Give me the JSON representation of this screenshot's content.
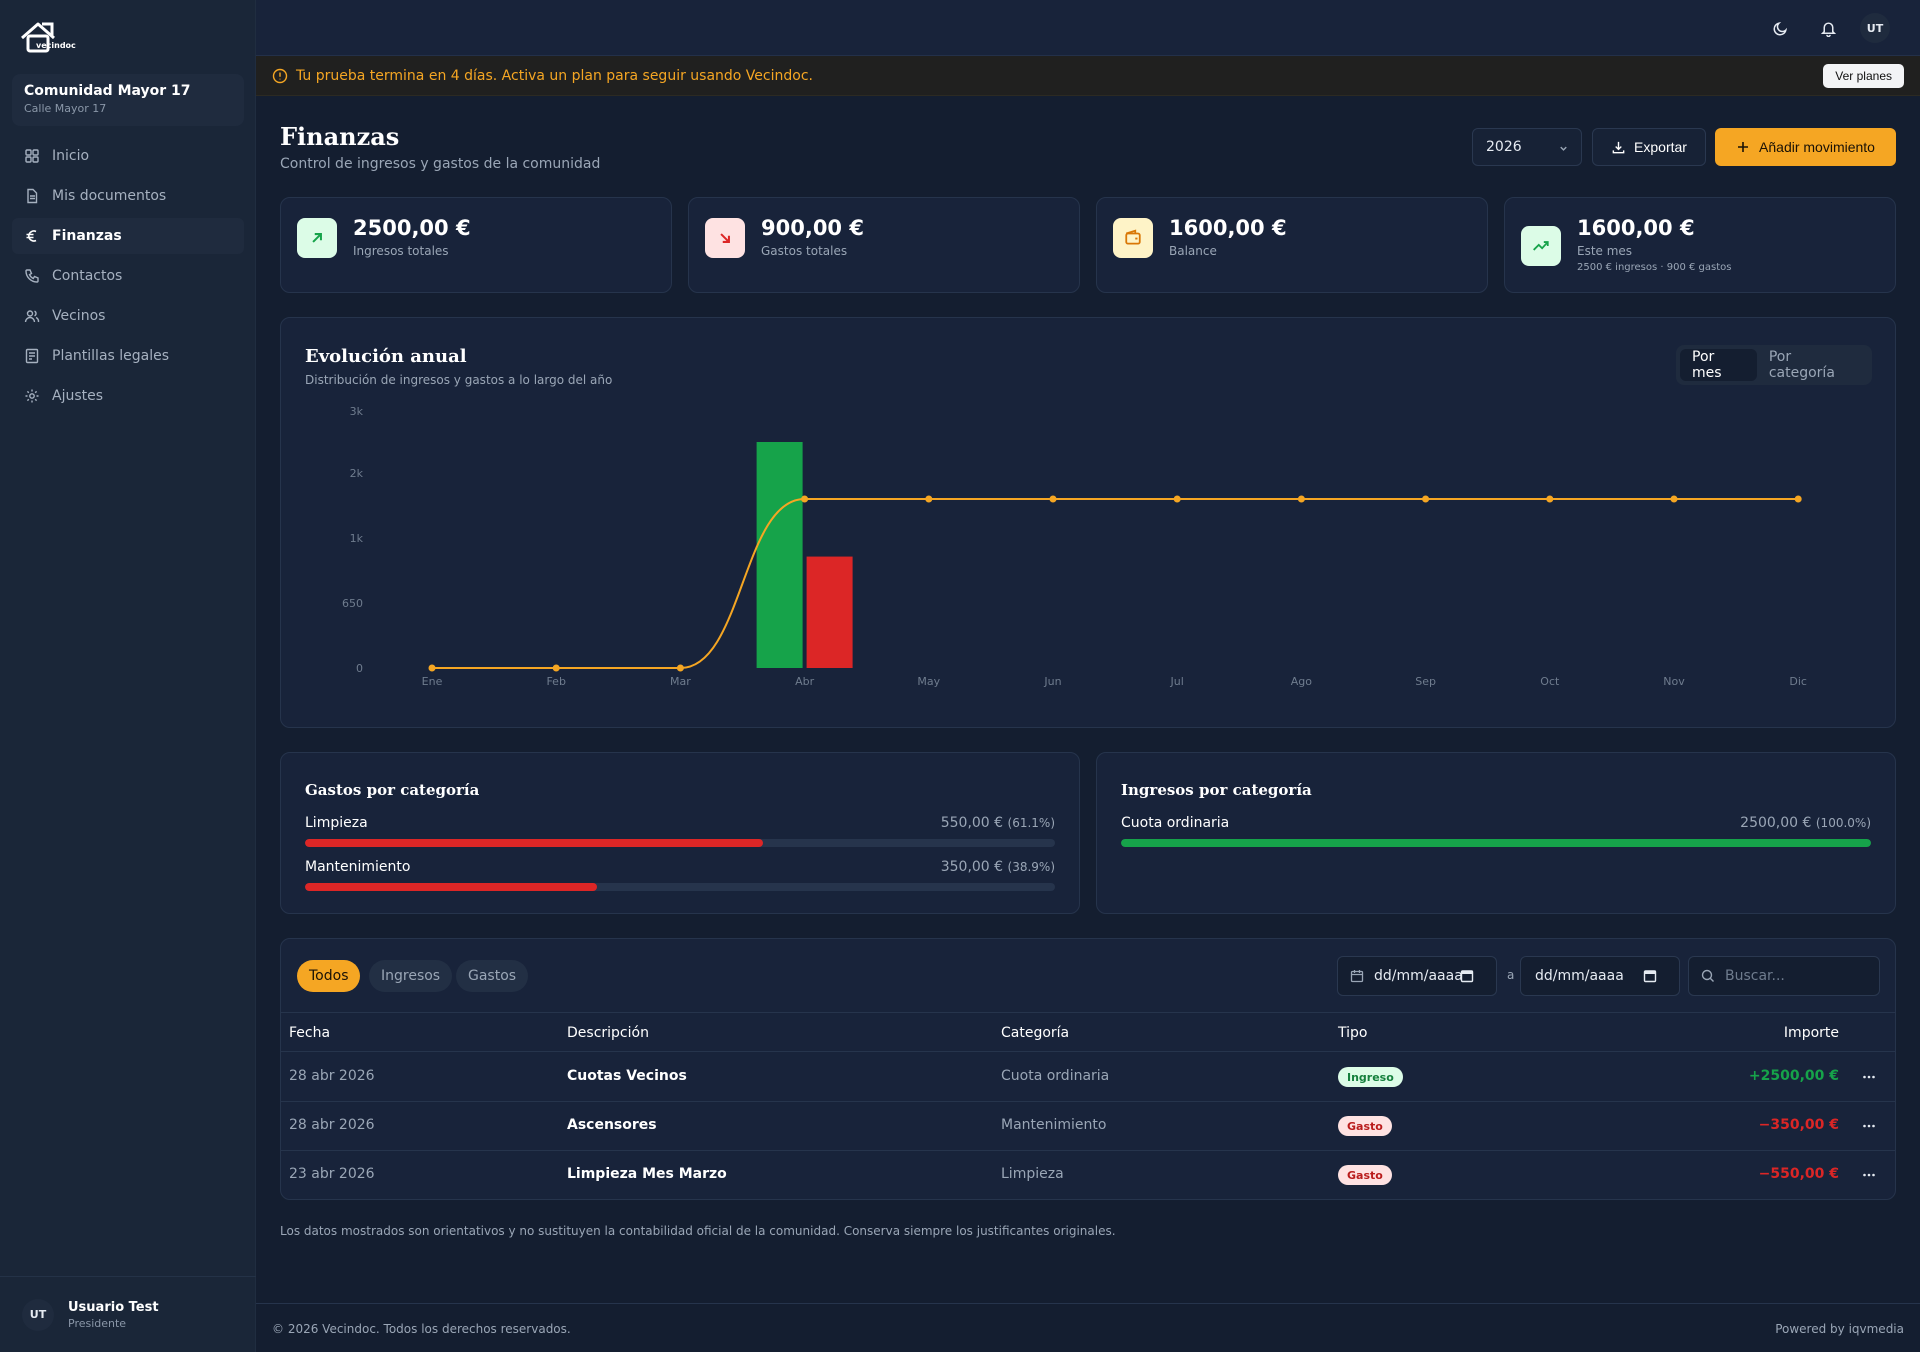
{
  "sidebar": {
    "logo_text": "vecindoc",
    "community": {
      "name": "Comunidad Mayor 17",
      "address": "Calle Mayor 17"
    },
    "items": [
      {
        "label": "Inicio",
        "icon": "grid-icon",
        "active": false
      },
      {
        "label": "Mis documentos",
        "icon": "document-icon",
        "active": false
      },
      {
        "label": "Finanzas",
        "icon": "euro-icon",
        "active": true
      },
      {
        "label": "Contactos",
        "icon": "phone-icon",
        "active": false
      },
      {
        "label": "Vecinos",
        "icon": "users-icon",
        "active": false
      },
      {
        "label": "Plantillas legales",
        "icon": "template-icon",
        "active": false
      },
      {
        "label": "Ajustes",
        "icon": "gear-icon",
        "active": false
      }
    ],
    "user": {
      "initials": "UT",
      "name": "Usuario Test",
      "role": "Presidente"
    }
  },
  "topbar": {
    "avatar_initials": "UT"
  },
  "banner": {
    "text": "Tu prueba termina en 4 días. Activa un plan para seguir usando Vecindoc.",
    "button": "Ver planes"
  },
  "header": {
    "title": "Finanzas",
    "subtitle": "Control de ingresos y gastos de la comunidad",
    "year": "2026",
    "export_label": "Exportar",
    "add_label": "Añadir movimiento"
  },
  "stats": [
    {
      "value": "2500,00 €",
      "label": "Ingresos totales",
      "extra": ""
    },
    {
      "value": "900,00 €",
      "label": "Gastos totales",
      "extra": ""
    },
    {
      "value": "1600,00 €",
      "label": "Balance",
      "extra": ""
    },
    {
      "value": "1600,00 €",
      "label": "Este mes",
      "extra": "2500 € ingresos · 900 € gastos"
    }
  ],
  "colors": {
    "accent": "#f5a623",
    "income": "#16a34a",
    "expense": "#dc2626"
  },
  "chart_toggle": {
    "by_month": "Por mes",
    "by_category": "Por categoría"
  },
  "chart_data": {
    "type": "bar",
    "title": "Evolución anual",
    "subtitle": "Distribución de ingresos y gastos a lo largo del año",
    "categories": [
      "Ene",
      "Feb",
      "Mar",
      "Abr",
      "May",
      "Jun",
      "Jul",
      "Ago",
      "Sep",
      "Oct",
      "Nov",
      "Dic"
    ],
    "y_ticks": [
      "0",
      "650",
      "1k",
      "2k",
      "3k"
    ],
    "series": [
      {
        "type": "bar",
        "values": [
          0,
          0,
          0,
          2500,
          0,
          0,
          0,
          0,
          0,
          0,
          0,
          0
        ],
        "color": "#16a34a"
      },
      {
        "type": "bar",
        "values": [
          0,
          0,
          0,
          900,
          0,
          0,
          0,
          0,
          0,
          0,
          0,
          0
        ],
        "color": "#dc2626"
      },
      {
        "type": "line",
        "values": [
          0,
          0,
          0,
          1600,
          1600,
          1600,
          1600,
          1600,
          1600,
          1600,
          1600,
          1600
        ],
        "color": "#f5a623"
      }
    ],
    "grid": false
  },
  "expenses_by_category": {
    "title": "Gastos por categoría",
    "items": [
      {
        "name": "Limpieza",
        "value": "550,00 €",
        "pct": "(61.1%)",
        "fraction": 0.611
      },
      {
        "name": "Mantenimiento",
        "value": "350,00 €",
        "pct": "(38.9%)",
        "fraction": 0.389
      }
    ]
  },
  "income_by_category": {
    "title": "Ingresos por categoría",
    "items": [
      {
        "name": "Cuota ordinaria",
        "value": "2500,00 €",
        "pct": "(100.0%)",
        "fraction": 1.0
      }
    ]
  },
  "movements": {
    "filters": [
      "Todos",
      "Ingresos",
      "Gastos"
    ],
    "date_from_placeholder": "dd/mm/aaaa",
    "date_to_placeholder": "dd/mm/aaaa",
    "date_sep": "a",
    "search_placeholder": "Buscar...",
    "columns": [
      "Fecha",
      "Descripción",
      "Categoría",
      "Tipo",
      "Importe"
    ],
    "rows": [
      {
        "date": "28 abr 2026",
        "desc": "Cuotas Vecinos",
        "cat": "Cuota ordinaria",
        "type": "Ingreso",
        "amount": "+2500,00 €"
      },
      {
        "date": "28 abr 2026",
        "desc": "Ascensores",
        "cat": "Mantenimiento",
        "type": "Gasto",
        "amount": "−350,00 €"
      },
      {
        "date": "23 abr 2026",
        "desc": "Limpieza Mes Marzo",
        "cat": "Limpieza",
        "type": "Gasto",
        "amount": "−550,00 €"
      }
    ]
  },
  "disclaimer": "Los datos mostrados son orientativos y no sustituyen la contabilidad oficial de la comunidad. Conserva siempre los justificantes originales.",
  "footer": {
    "left": "© 2026 Vecindoc. Todos los derechos reservados.",
    "right": "Powered by iqvmedia"
  }
}
